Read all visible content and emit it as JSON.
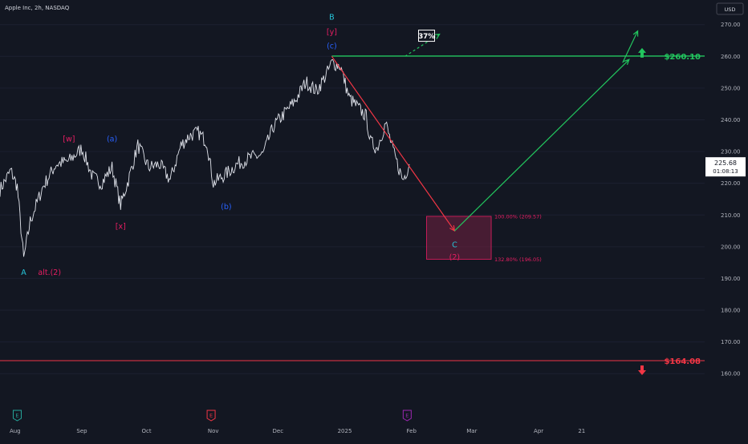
{
  "header": {
    "symbol": "Apple Inc, 2h, NASDAQ",
    "currency": "USD"
  },
  "colors": {
    "background": "#131722",
    "grid": "#1c2030",
    "axis_text": "#b2b5be",
    "candles": "#e0e3eb",
    "target_line": "#22c55e",
    "stop_line": "#f23645",
    "down_arrow": "#f23645",
    "up_arrow": "#22c55e",
    "zone": "#6b1f3f",
    "cyan": "#26c6da",
    "magenta": "#e91e63",
    "blue": "#2962ff",
    "purple": "#9c27b0"
  },
  "chart_data": {
    "type": "line",
    "ylim": [
      155,
      277
    ],
    "yticks": [
      160,
      170,
      180,
      190,
      200,
      210,
      220,
      230,
      240,
      250,
      260,
      270
    ],
    "xticks": [
      "Aug",
      "Sep",
      "Oct",
      "Nov",
      "Dec",
      "2025",
      "Feb",
      "Mar",
      "Apr",
      "21"
    ],
    "xlim": [
      "2024-07-25",
      "2025-05-22"
    ],
    "series": [
      {
        "x": [
          "2024-07-25",
          "2024-07-30",
          "2024-08-02",
          "2024-08-05",
          "2024-08-08",
          "2024-08-14",
          "2024-08-20",
          "2024-08-26",
          "2024-09-01",
          "2024-09-06",
          "2024-09-10",
          "2024-09-15",
          "2024-09-19",
          "2024-09-23",
          "2024-09-27",
          "2024-10-02",
          "2024-10-07",
          "2024-10-12",
          "2024-10-17",
          "2024-10-21",
          "2024-10-25",
          "2024-10-29",
          "2024-11-01",
          "2024-11-07",
          "2024-11-12",
          "2024-11-18",
          "2024-11-24",
          "2024-11-29",
          "2024-12-04",
          "2024-12-09",
          "2024-12-14",
          "2024-12-19",
          "2024-12-24",
          "2024-12-26",
          "2024-12-30",
          "2025-01-03",
          "2025-01-07",
          "2025-01-11",
          "2025-01-13",
          "2025-01-16",
          "2025-01-20",
          "2025-01-24",
          "2025-01-28",
          "2025-01-31"
        ],
        "values": [
          218,
          224,
          219,
          196,
          208,
          219,
          226,
          227,
          231,
          222,
          220,
          225,
          213,
          222,
          232,
          225,
          226,
          221,
          232,
          235,
          236,
          233,
          220,
          223,
          226,
          228,
          229,
          238,
          242,
          246,
          252,
          249,
          255,
          258,
          257,
          247,
          244,
          241,
          233,
          231,
          239,
          229,
          221,
          226
        ]
      }
    ],
    "current_price": {
      "value": "225.68",
      "timer": "01:08:13",
      "y": 225.68
    },
    "levels": [
      {
        "name": "target",
        "value": 260.1,
        "label": "$260.10"
      },
      {
        "name": "stop",
        "value": 164.08,
        "label": "$164.08"
      }
    ],
    "zone": {
      "x0": "2025-02-08",
      "x1": "2025-03-10",
      "y_top": 209.57,
      "y_bottom": 196.05,
      "top_label": "100.00% (209.57)",
      "bottom_label": "132.80% (196.05)"
    },
    "projections": [
      {
        "name": "red-down",
        "points": [
          [
            "2024-12-26",
            260
          ],
          [
            "2025-02-21",
            205
          ]
        ]
      },
      {
        "name": "green-up",
        "points": [
          [
            "2025-02-21",
            205
          ],
          [
            "2025-05-13",
            259
          ]
        ]
      },
      {
        "name": "green-up-ext",
        "points": [
          [
            "2025-05-10",
            258
          ],
          [
            "2025-05-17",
            268
          ]
        ]
      },
      {
        "name": "green-dashed",
        "points": [
          [
            "2025-01-29",
            260
          ],
          [
            "2025-02-14",
            267
          ]
        ]
      }
    ],
    "probability": {
      "label": "37%",
      "date": "2025-02-08",
      "y": 266.5
    },
    "annotations": [
      {
        "text": "B",
        "date": "2024-12-26",
        "y": 272.5,
        "color": "cyan"
      },
      {
        "text": "[y]",
        "date": "2024-12-26",
        "y": 267.8,
        "color": "magenta"
      },
      {
        "text": "(c)",
        "date": "2024-12-26",
        "y": 263.3,
        "color": "blue"
      },
      {
        "text": "[w]",
        "date": "2024-08-26",
        "y": 234,
        "color": "magenta"
      },
      {
        "text": "(a)",
        "date": "2024-09-15",
        "y": 234,
        "color": "blue"
      },
      {
        "text": "[x]",
        "date": "2024-09-19",
        "y": 206.5,
        "color": "magenta"
      },
      {
        "text": "(b)",
        "date": "2024-11-07",
        "y": 212.7,
        "color": "blue"
      },
      {
        "text": "A",
        "date": "2024-08-05",
        "y": 192,
        "color": "cyan"
      },
      {
        "text": "alt.(2)",
        "date": "2024-08-17",
        "y": 192,
        "color": "magenta"
      },
      {
        "text": "C",
        "date": "2025-02-21",
        "y": 200.7,
        "color": "cyan"
      },
      {
        "text": "(2)",
        "date": "2025-02-21",
        "y": 196.8,
        "color": "magenta"
      }
    ],
    "events": [
      {
        "glyph": "E",
        "date": "2024-08-02",
        "color": "#26a69a"
      },
      {
        "glyph": "E",
        "date": "2024-10-31",
        "color": "#f23645"
      },
      {
        "glyph": "E",
        "date": "2025-01-30",
        "color": "#9c27b0"
      }
    ]
  }
}
